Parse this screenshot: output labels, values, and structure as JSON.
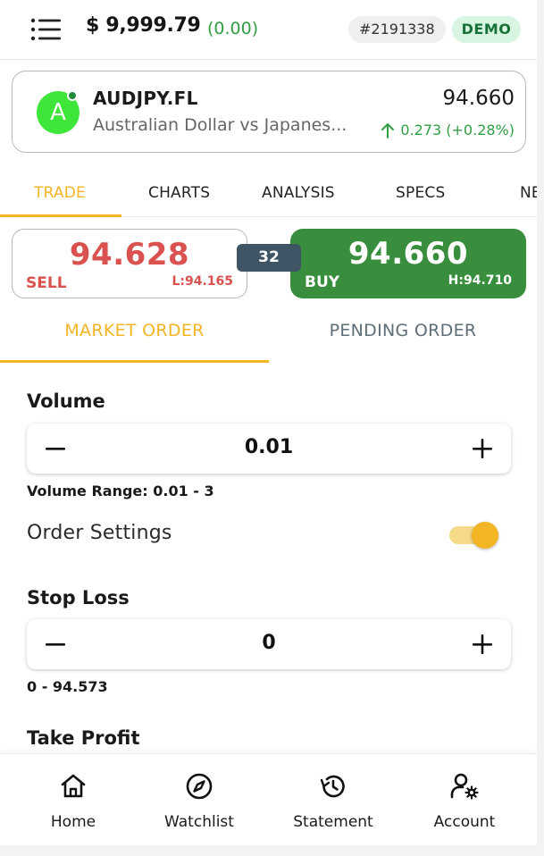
{
  "header": {
    "balance": "$ 9,999.79",
    "balance_change": "(0.00)",
    "account_id": "#2191338",
    "mode_badge": "DEMO"
  },
  "symbol": {
    "avatar_letter": "A",
    "name": "AUDJPY.FL",
    "description": "Australian Dollar vs Japanes...",
    "price": "94.660",
    "change": "0.273 (+0.28%)"
  },
  "tabs": [
    {
      "label": "TRADE",
      "active": true
    },
    {
      "label": "CHARTS",
      "active": false
    },
    {
      "label": "ANALYSIS",
      "active": false
    },
    {
      "label": "SPECS",
      "active": false
    },
    {
      "label": "NE",
      "active": false
    }
  ],
  "quote": {
    "sell_price": "94.628",
    "sell_label": "SELL",
    "low": "L:94.165",
    "spread": "32",
    "buy_price": "94.660",
    "buy_label": "BUY",
    "high": "H:94.710"
  },
  "order_tabs": {
    "market": "MARKET ORDER",
    "pending": "PENDING ORDER"
  },
  "form": {
    "volume_label": "Volume",
    "volume_value": "0.01",
    "volume_range": "Volume Range: 0.01 - 3",
    "order_settings_label": "Order Settings",
    "order_settings_enabled": true,
    "stop_loss_label": "Stop Loss",
    "stop_loss_value": "0",
    "stop_loss_range": "0 - 94.573",
    "take_profit_label": "Take Profit"
  },
  "bottom_nav": [
    {
      "label": "Home",
      "icon": "home-icon"
    },
    {
      "label": "Watchlist",
      "icon": "compass-icon"
    },
    {
      "label": "Statement",
      "icon": "history-icon"
    },
    {
      "label": "Account",
      "icon": "account-settings-icon"
    }
  ],
  "colors": {
    "accent": "#f3b523",
    "sell": "#d9524f",
    "buy": "#388e3c",
    "positive": "#2f9e44",
    "spread_bg": "#3f5566"
  }
}
